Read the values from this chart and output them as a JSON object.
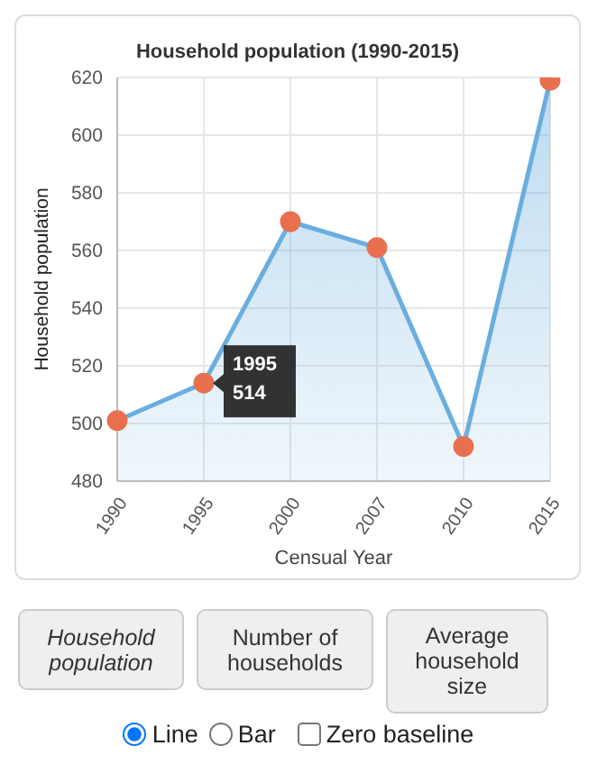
{
  "chart_data": {
    "type": "area",
    "title": "Household population (1990-2015)",
    "xlabel": "Censual Year",
    "ylabel": "Household population",
    "categories": [
      "1990",
      "1995",
      "2000",
      "2007",
      "2010",
      "2015"
    ],
    "series": [
      {
        "color": "#6aaee0",
        "values": [
          501,
          514,
          570,
          561,
          492,
          619
        ]
      }
    ],
    "ylim": [
      480,
      620
    ],
    "yticks": [
      480,
      500,
      520,
      540,
      560,
      580,
      600,
      620
    ],
    "grid": true,
    "marker": "circle",
    "legend": false,
    "annotations": [
      {
        "text": "1995\n514",
        "x": "1995",
        "y": 514
      },
      "Household population",
      "Number of households",
      "Average household size",
      "Line",
      "Bar",
      "Zero baseline"
    ]
  }
}
